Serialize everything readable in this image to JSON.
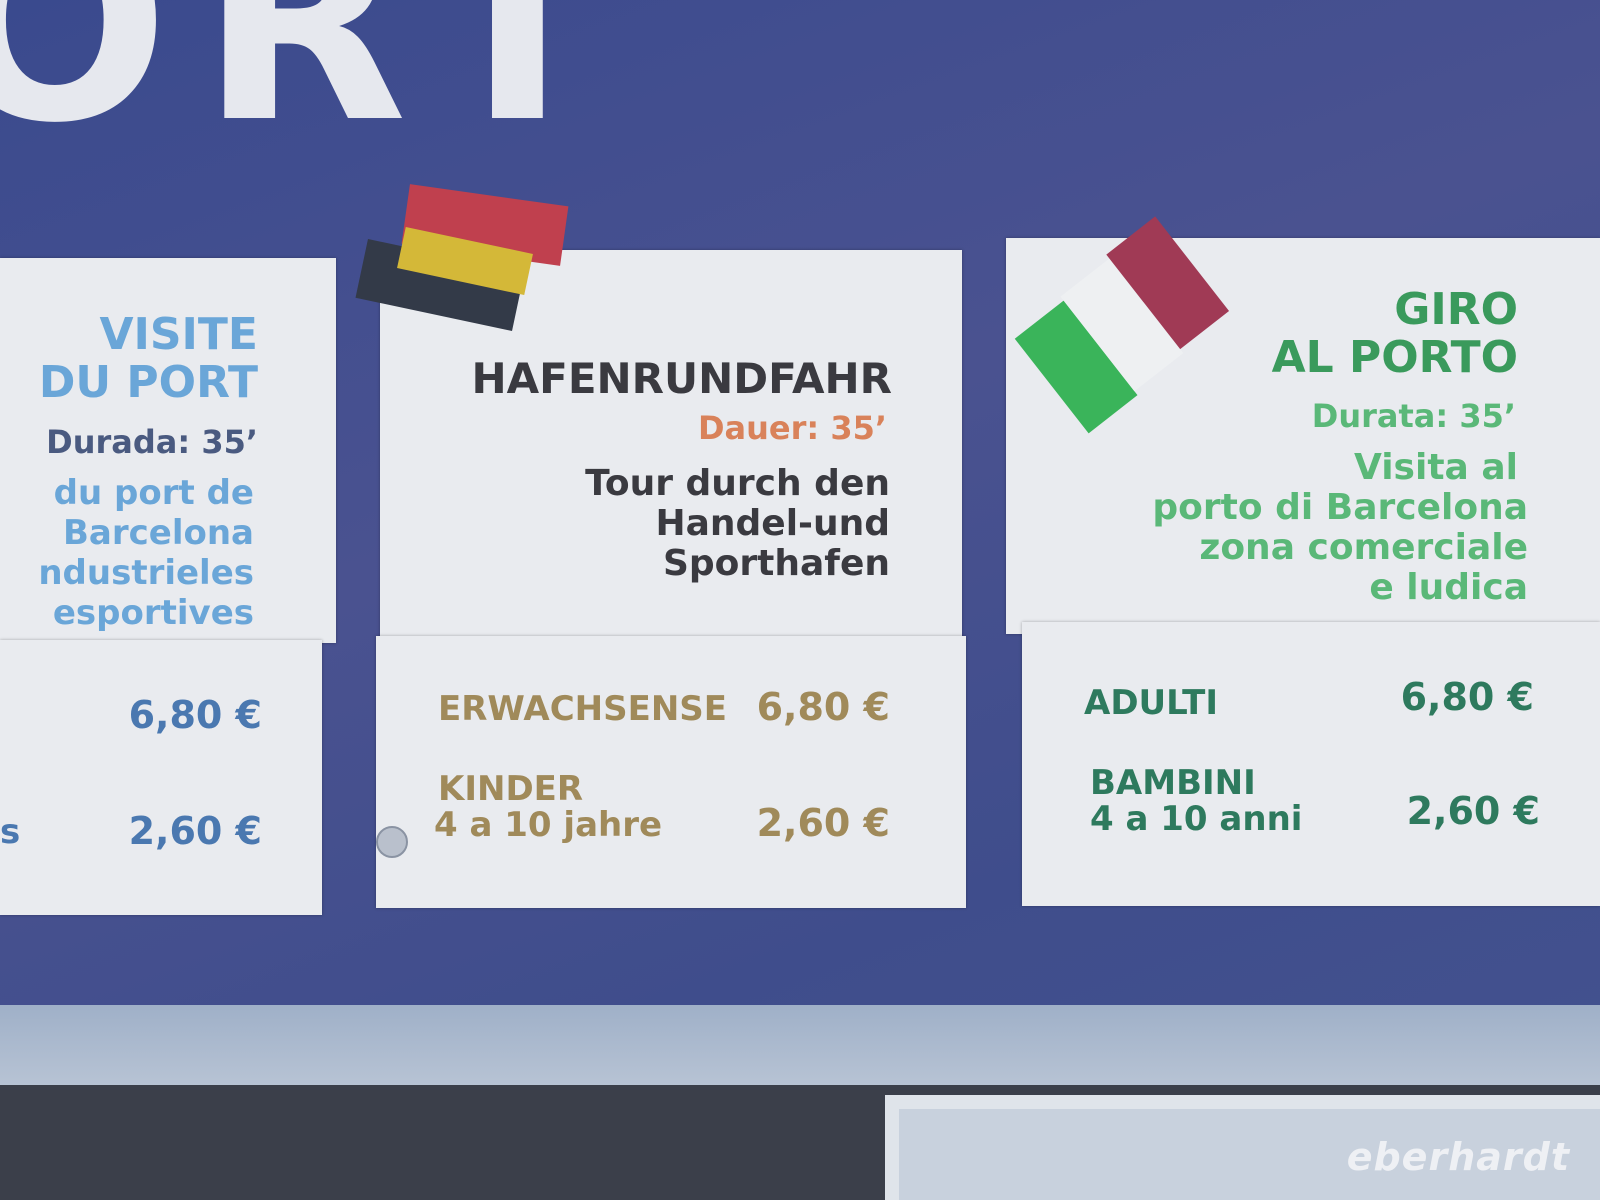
{
  "sign_heading": "ORT",
  "french": {
    "title1": "VISITE",
    "title2": "DU PORT",
    "duration": "Durada: 35’",
    "desc": [
      "du port de",
      "Barcelona",
      "ndustrieles",
      "esportives"
    ],
    "prices": [
      {
        "label": "",
        "price": "6,80 €"
      },
      {
        "label": "s",
        "price": "2,60 €"
      }
    ],
    "color": "#6aa6d8"
  },
  "german": {
    "title": "HAFENRUNDFAHR",
    "duration": "Dauer: 35’",
    "desc": [
      "Tour durch den",
      "Handel-und",
      "Sporthafen"
    ],
    "adult_label": "ERWACHSENSE",
    "adult_price": "6,80 €",
    "child_label": "KINDER",
    "child_age": "4 a 10 jahre",
    "child_price": "2,60 €",
    "color": "#a08a5a"
  },
  "italian": {
    "title1": "GIRO",
    "title2": "AL PORTO",
    "duration": "Durata: 35’",
    "desc": [
      "Visita al",
      "porto di Barcelona",
      "zona comerciale",
      "e ludica"
    ],
    "adult_label": "ADULTI",
    "adult_price": "6,80 €",
    "child_label": "BAMBINI",
    "child_age": "4 a 10 anni",
    "child_price": "2,60 €",
    "color": "#3a9a5c"
  },
  "watermark": "eberhardt"
}
